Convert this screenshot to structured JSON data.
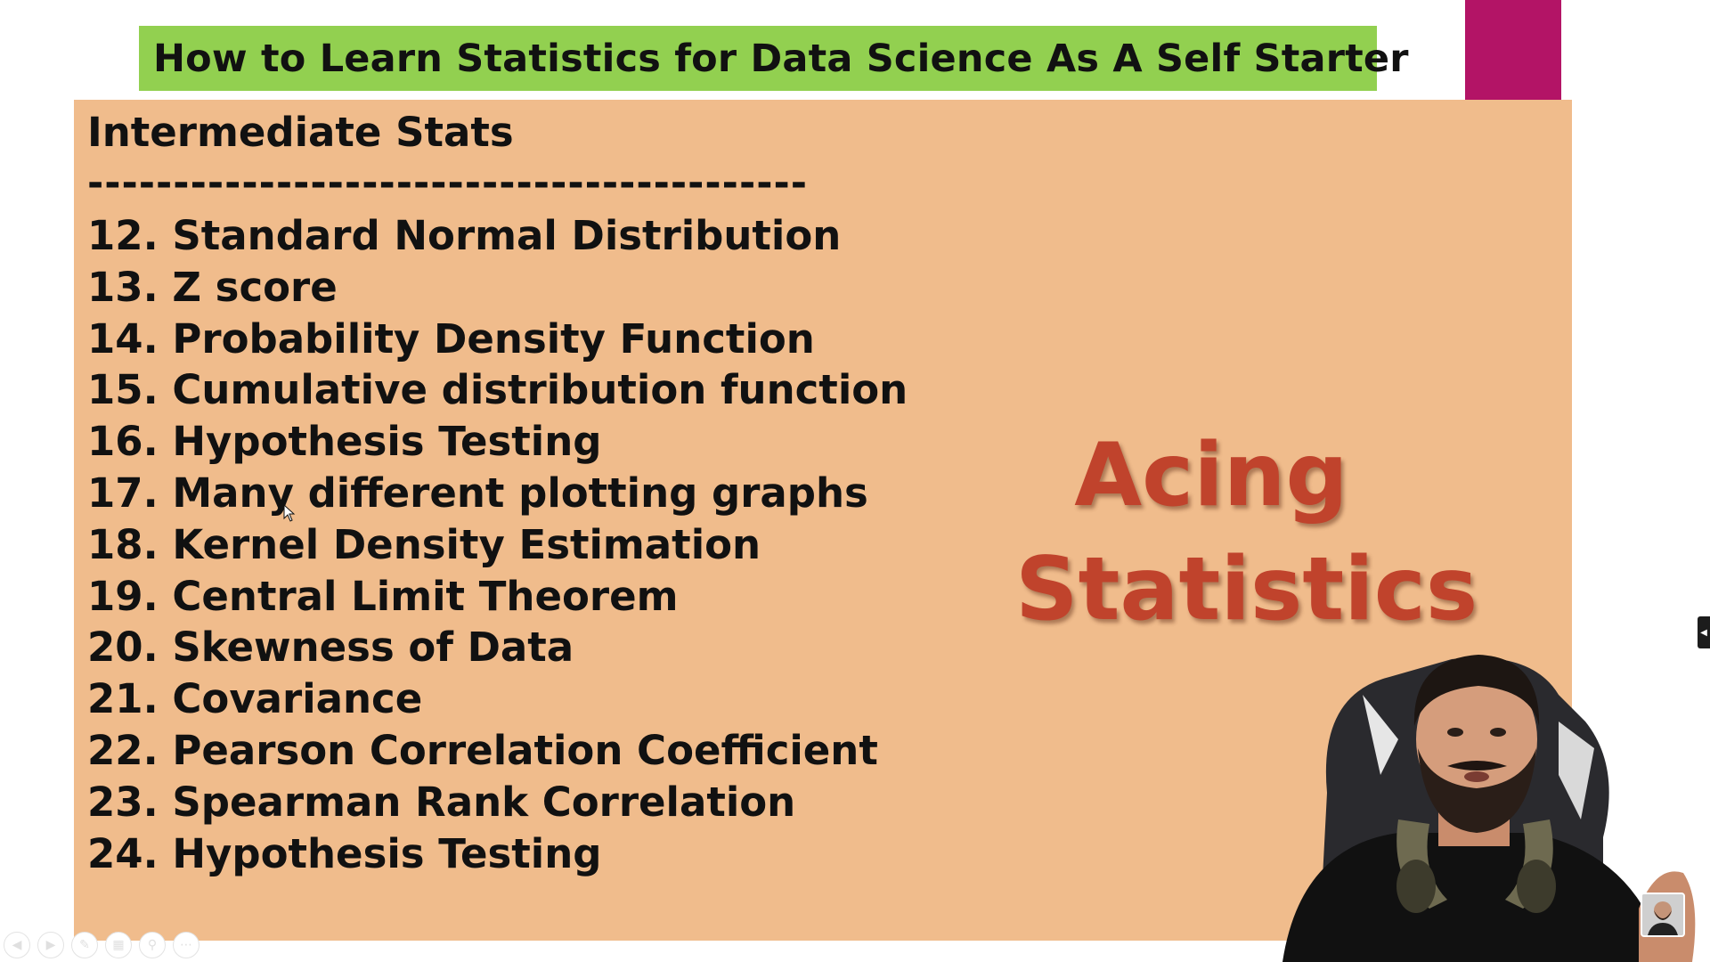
{
  "slide": {
    "title": "How to Learn Statistics for Data Science As A Self Starter",
    "section_heading": "Intermediate Stats",
    "divider": "------------------------------------------",
    "topics": [
      {
        "num": "12.",
        "label": "Standard Normal Distribution"
      },
      {
        "num": "13.",
        "label": "Z score"
      },
      {
        "num": "14.",
        "label": "Probability Density Function"
      },
      {
        "num": "15.",
        "label": "Cumulative distribution function"
      },
      {
        "num": "16.",
        "label": "Hypothesis Testing"
      },
      {
        "num": "17.",
        "label": "Many different plotting graphs"
      },
      {
        "num": "18.",
        "label": "Kernel Density Estimation"
      },
      {
        "num": "19.",
        "label": "Central Limit Theorem"
      },
      {
        "num": "20.",
        "label": "Skewness of Data"
      },
      {
        "num": "21.",
        "label": "Covariance"
      },
      {
        "num": "22.",
        "label": "Pearson Correlation Coefficient"
      },
      {
        "num": "23.",
        "label": "Spearman Rank Correlation"
      },
      {
        "num": "24.",
        "label": "Hypothesis Testing"
      }
    ],
    "callout": {
      "line1": "Acing",
      "line2": "Statistics"
    }
  },
  "controls": {
    "icons": [
      "previous-icon",
      "next-icon",
      "pen-icon",
      "slides-grid-icon",
      "zoom-icon",
      "more-icon"
    ]
  },
  "colors": {
    "title_bar": "#92d050",
    "panel": "#f0bc8c",
    "accent": "#b31466",
    "callout_text": "#c0432c"
  }
}
